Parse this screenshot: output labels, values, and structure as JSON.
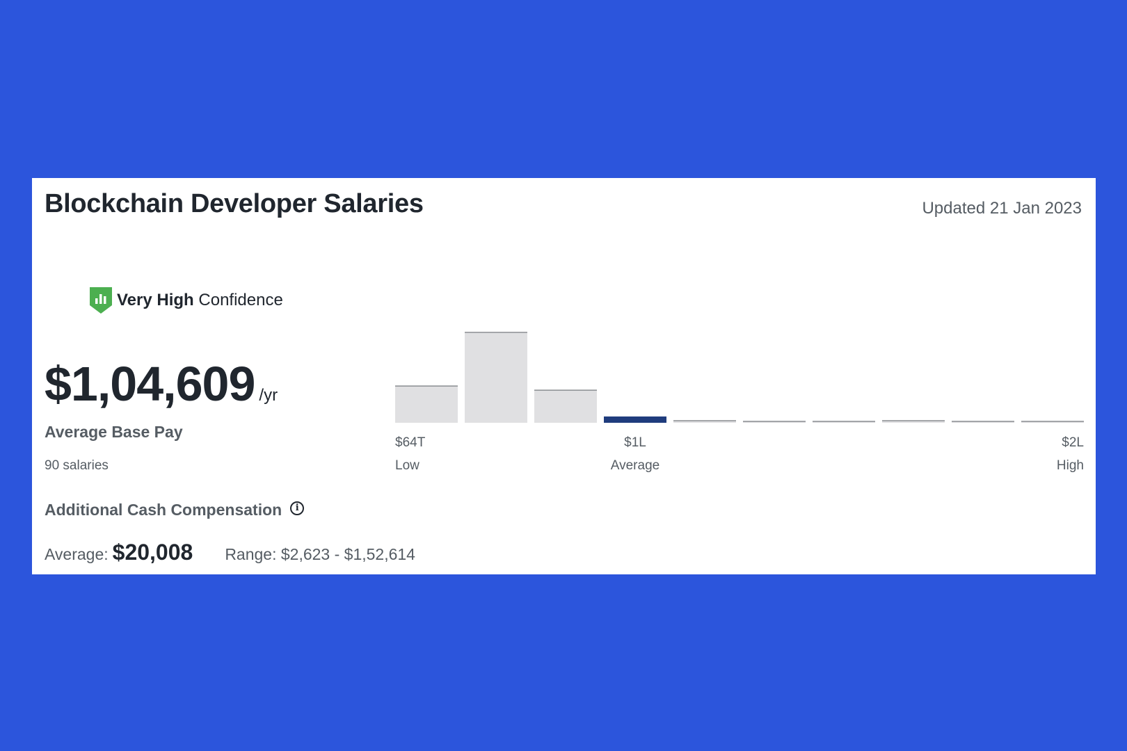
{
  "card": {
    "title": "Blockchain Developer Salaries",
    "updated": "Updated 21 Jan 2023",
    "confidence": {
      "level": "Very High",
      "suffix": " Confidence",
      "color": "#4caf50"
    },
    "pay": {
      "value": "$1,04,609",
      "unit": "/yr",
      "label": "Average Base Pay",
      "count": "90 salaries"
    },
    "additional": {
      "label": "Additional Cash Compensation",
      "average_label": "Average:",
      "average_value": "$20,008",
      "range_label": "Range: $2,623 - $1,52,614"
    }
  },
  "colors": {
    "background": "#2c55dc",
    "bar": "#e0e0e2",
    "bar_highlight": "#1f3c7d"
  },
  "chart_data": {
    "type": "bar",
    "values": [
      35,
      86,
      31,
      6,
      2,
      1,
      1,
      2,
      1,
      1
    ],
    "highlight_index": 3,
    "tick_labels": [
      {
        "bin": 0,
        "value": "$64T",
        "label": "Low",
        "align": "left"
      },
      {
        "bin": 3,
        "value": "$1L",
        "label": "Average",
        "align": "center"
      },
      {
        "bin": 9,
        "value": "$2L",
        "label": "High",
        "align": "right"
      }
    ]
  }
}
